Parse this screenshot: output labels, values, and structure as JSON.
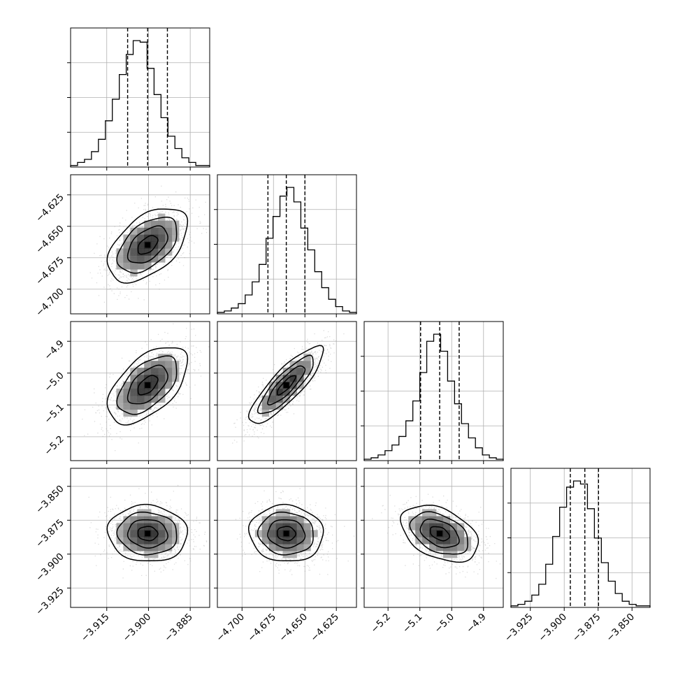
{
  "chart_data": {
    "type": "corner",
    "dimensions": 4,
    "grid": true,
    "variables": [
      {
        "range": [
          -3.928,
          -3.878
        ],
        "ticks": [
          -3.915,
          -3.9,
          -3.885
        ],
        "tick_labels": [
          "−3.915",
          "−3.900",
          "−3.885"
        ],
        "quantiles": [
          -3.9075,
          -3.9003,
          -3.8932
        ]
      },
      {
        "range": [
          -4.7196,
          -4.609
        ],
        "ticks": [
          -4.7,
          -4.675,
          -4.65,
          -4.625
        ],
        "tick_labels": [
          "−4.700",
          "−4.675",
          "−4.650",
          "−4.625"
        ],
        "quantiles": [
          -4.6794,
          -4.6648,
          -4.65
        ]
      },
      {
        "range": [
          -5.275,
          -4.838
        ],
        "ticks": [
          -5.2,
          -5.1,
          -5.0,
          -4.9
        ],
        "tick_labels": [
          "−5.2",
          "−5.1",
          "−5.0",
          "−4.9"
        ],
        "quantiles": [
          -5.0977,
          -5.0378,
          -4.9765
        ]
      },
      {
        "range": [
          -3.9393,
          -3.8367
        ],
        "ticks": [
          -3.925,
          -3.9,
          -3.875,
          -3.85
        ],
        "tick_labels": [
          "−3.925",
          "−3.900",
          "−3.875",
          "−3.850"
        ],
        "quantiles": [
          -3.8955,
          -3.8848,
          -3.8747
        ]
      }
    ],
    "histograms": [
      {
        "index": 0,
        "counts": [
          1,
          3,
          5,
          10,
          18,
          30,
          44,
          60,
          73,
          82,
          81,
          64,
          47,
          32,
          20,
          12,
          6,
          3,
          1,
          1
        ]
      },
      {
        "index": 1,
        "counts": [
          1,
          2,
          4,
          7,
          13,
          22,
          34,
          52,
          67,
          81,
          87,
          77,
          59,
          44,
          29,
          18,
          10,
          5,
          2,
          1
        ]
      },
      {
        "index": 2,
        "counts": [
          1,
          2,
          4,
          7,
          11,
          17,
          28,
          42,
          62,
          84,
          89,
          77,
          56,
          40,
          26,
          16,
          9,
          4,
          2,
          1
        ]
      },
      {
        "index": 3,
        "counts": [
          1,
          2,
          4,
          8,
          15,
          28,
          46,
          65,
          78,
          82,
          80,
          64,
          45,
          29,
          17,
          9,
          4,
          2,
          1,
          1
        ]
      }
    ],
    "pairs": [
      {
        "x": 0,
        "y": 1,
        "correlation": 0.5
      },
      {
        "x": 0,
        "y": 2,
        "correlation": 0.55
      },
      {
        "x": 1,
        "y": 2,
        "correlation": 0.85
      },
      {
        "x": 0,
        "y": 3,
        "correlation": -0.05
      },
      {
        "x": 1,
        "y": 3,
        "correlation": -0.05
      },
      {
        "x": 2,
        "y": 3,
        "correlation": -0.4
      }
    ],
    "contour_levels_sigma": [
      0.5,
      1.0,
      1.5,
      2.0
    ]
  }
}
